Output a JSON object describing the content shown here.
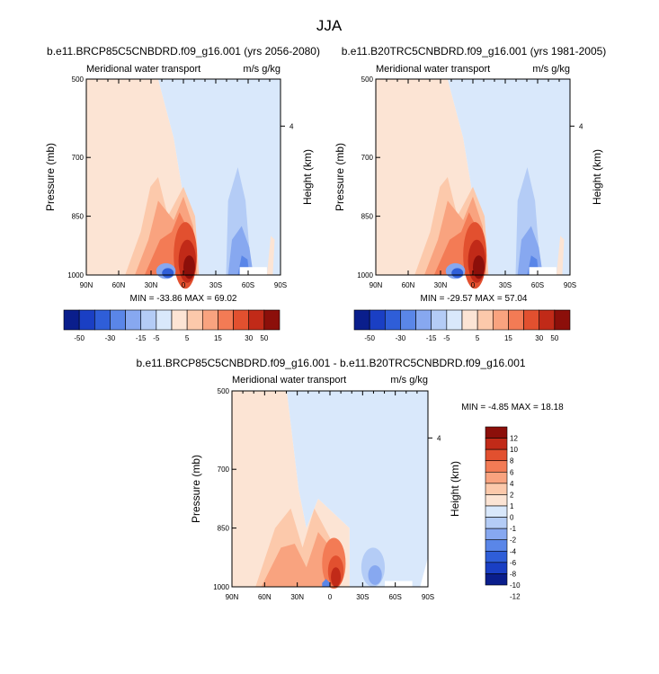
{
  "figure_title": "JJA",
  "palette": [
    "#0a1e8c",
    "#1a3fc4",
    "#2f5ed8",
    "#5a86e8",
    "#87a8f0",
    "#b4ccf6",
    "#d9e8fb",
    "#fce4d4",
    "#fcc9ab",
    "#f9a37f",
    "#f37b55",
    "#e2502f",
    "#c12a18",
    "#8c0f0a"
  ],
  "diff_palette": [
    "#0a1e8c",
    "#1a3fc4",
    "#2f5ed8",
    "#5a86e8",
    "#87a8f0",
    "#b4ccf6",
    "#d9e8fb",
    "#fce4d4",
    "#fcc9ab",
    "#f9a37f",
    "#f37b55",
    "#e2502f",
    "#c12a18",
    "#8c0f0a"
  ],
  "chart_data": [
    {
      "type": "heatmap",
      "title": "b.e11.BRCP85C5CNBDRD.f09_g16.001 (yrs 2056-2080)",
      "left_label": "Meridional water transport",
      "right_label": "m/s g/kg",
      "xlabel": "",
      "ylabel": "Pressure (mb)",
      "ylabel_right": "Height (km)",
      "x_ticks": [
        "90N",
        "60N",
        "30N",
        "0",
        "30S",
        "60S",
        "90S"
      ],
      "y_ticks": [
        "500",
        "700",
        "850",
        "1000"
      ],
      "y_ticks_right": [
        "4"
      ],
      "min_max_text": "MIN = -33.86   MAX =  69.02",
      "min": -33.86,
      "max": 69.02,
      "colorbar_orientation": "horizontal",
      "colorbar_labels": [
        "-50",
        "-30",
        "-15",
        "-5",
        "5",
        "15",
        "30",
        "50"
      ]
    },
    {
      "type": "heatmap",
      "title": "b.e11.B20TRC5CNBDRD.f09_g16.001 (yrs 1981-2005)",
      "left_label": "Meridional water transport",
      "right_label": "m/s g/kg",
      "xlabel": "",
      "ylabel": "Pressure (mb)",
      "ylabel_right": "Height (km)",
      "x_ticks": [
        "90N",
        "60N",
        "30N",
        "0",
        "30S",
        "60S",
        "90S"
      ],
      "y_ticks": [
        "500",
        "700",
        "850",
        "1000"
      ],
      "y_ticks_right": [
        "4"
      ],
      "min_max_text": "MIN = -29.57   MAX =  57.04",
      "min": -29.57,
      "max": 57.04,
      "colorbar_orientation": "horizontal",
      "colorbar_labels": [
        "-50",
        "-30",
        "-15",
        "-5",
        "5",
        "15",
        "30",
        "50"
      ]
    },
    {
      "type": "heatmap",
      "title": "b.e11.BRCP85C5CNBDRD.f09_g16.001 - b.e11.B20TRC5CNBDRD.f09_g16.001",
      "left_label": "Meridional water transport",
      "right_label": "m/s g/kg",
      "xlabel": "",
      "ylabel": "Pressure (mb)",
      "ylabel_right": "Height (km)",
      "x_ticks": [
        "90N",
        "60N",
        "30N",
        "0",
        "30S",
        "60S",
        "90S"
      ],
      "y_ticks": [
        "500",
        "700",
        "850",
        "1000"
      ],
      "y_ticks_right": [
        "4"
      ],
      "min_max_text": "MIN =  -4.85   MAX =  18.18",
      "min": -4.85,
      "max": 18.18,
      "colorbar_orientation": "vertical",
      "colorbar_labels": [
        "12",
        "10",
        "8",
        "6",
        "4",
        "2",
        "1",
        "0",
        "-1",
        "-2",
        "-4",
        "-6",
        "-8",
        "-10",
        "-12"
      ]
    }
  ]
}
